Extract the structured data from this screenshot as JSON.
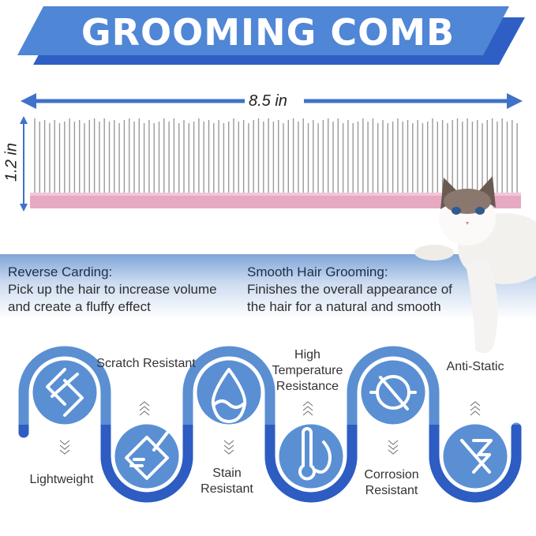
{
  "title": "GROOMING COMB",
  "dimensions": {
    "length": "8.5 in",
    "height": "1.2 in"
  },
  "colors": {
    "banner": "#4f86d6",
    "banner_shadow": "#2f5fc4",
    "comb_base": "#e6a9c1",
    "tube_light": "#5b8fd2",
    "tube_dark": "#2d5cc2",
    "circle": "#5a8fd3"
  },
  "features": [
    {
      "heading": "Reverse Carding:",
      "lines": [
        "Pick up the hair to increase volume",
        "and create a fluffy effect"
      ]
    },
    {
      "heading": "Smooth Hair Grooming:",
      "lines": [
        "Finishes the overall appearance of",
        "the hair for a natural and smooth"
      ]
    }
  ],
  "properties": [
    {
      "label": "Lightweight",
      "icon": "layers-icon"
    },
    {
      "label": "Scratch Resistant",
      "icon": "scratch-card-icon"
    },
    {
      "label": "Stain Resistant",
      "icon": "water-drop-icon"
    },
    {
      "label": "High Temperature Resistance",
      "icon": "thermometer-flame-icon"
    },
    {
      "label": "Corrosion Resistant",
      "icon": "no-bacteria-icon"
    },
    {
      "label": "Anti-Static",
      "icon": "no-static-icon"
    }
  ]
}
